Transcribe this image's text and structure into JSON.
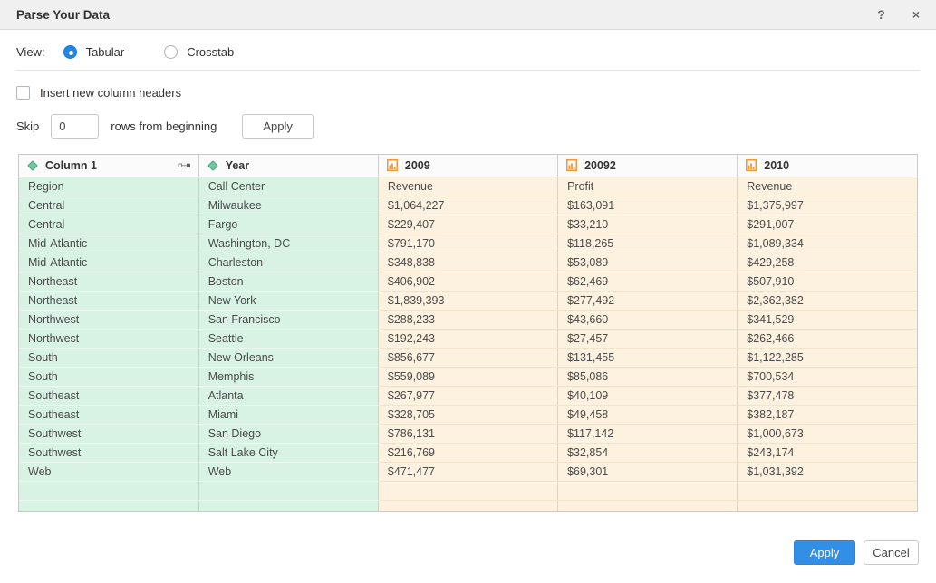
{
  "dialog": {
    "title": "Parse Your Data",
    "help_icon": "?",
    "close_icon": "×"
  },
  "view": {
    "label": "View:",
    "options": [
      {
        "label": "Tabular",
        "selected": true
      },
      {
        "label": "Crosstab",
        "selected": false
      }
    ]
  },
  "options": {
    "insert_headers_label": "Insert new column headers",
    "insert_headers_checked": false,
    "skip_label": "Skip",
    "skip_value": "0",
    "skip_suffix": "rows from beginning",
    "skip_apply_label": "Apply"
  },
  "table": {
    "columns": [
      {
        "label": "Column 1",
        "type": "text"
      },
      {
        "label": "Year",
        "type": "text"
      },
      {
        "label": "2009",
        "type": "number"
      },
      {
        "label": "20092",
        "type": "number"
      },
      {
        "label": "2010",
        "type": "number"
      }
    ],
    "rows": [
      [
        "Region",
        "Call Center",
        "Revenue",
        "Profit",
        "Revenue"
      ],
      [
        "Central",
        "Milwaukee",
        "$1,064,227",
        "$163,091",
        "$1,375,997"
      ],
      [
        "Central",
        "Fargo",
        "$229,407",
        "$33,210",
        "$291,007"
      ],
      [
        "Mid-Atlantic",
        "Washington, DC",
        "$791,170",
        "$118,265",
        "$1,089,334"
      ],
      [
        "Mid-Atlantic",
        "Charleston",
        "$348,838",
        "$53,089",
        "$429,258"
      ],
      [
        "Northeast",
        "Boston",
        "$406,902",
        "$62,469",
        "$507,910"
      ],
      [
        "Northeast",
        "New York",
        "$1,839,393",
        "$277,492",
        "$2,362,382"
      ],
      [
        "Northwest",
        "San Francisco",
        "$288,233",
        "$43,660",
        "$341,529"
      ],
      [
        "Northwest",
        "Seattle",
        "$192,243",
        "$27,457",
        "$262,466"
      ],
      [
        "South",
        "New Orleans",
        "$856,677",
        "$131,455",
        "$1,122,285"
      ],
      [
        "South",
        "Memphis",
        "$559,089",
        "$85,086",
        "$700,534"
      ],
      [
        "Southeast",
        "Atlanta",
        "$267,977",
        "$40,109",
        "$377,478"
      ],
      [
        "Southeast",
        "Miami",
        "$328,705",
        "$49,458",
        "$382,187"
      ],
      [
        "Southwest",
        "San Diego",
        "$786,131",
        "$117,142",
        "$1,000,673"
      ],
      [
        "Southwest",
        "Salt Lake City",
        "$216,769",
        "$32,854",
        "$243,174"
      ],
      [
        "Web",
        "Web",
        "$471,477",
        "$69,301",
        "$1,031,392"
      ],
      [
        "",
        "",
        "",
        "",
        ""
      ],
      [
        "",
        "",
        "",
        "",
        ""
      ]
    ]
  },
  "footer": {
    "apply_label": "Apply",
    "cancel_label": "Cancel"
  },
  "colors": {
    "accent_blue": "#338fe5",
    "text_column_bg": "#d8f3e4",
    "number_column_bg": "#fdf1e0",
    "text_column_icon": "#6ec7a0",
    "number_column_icon": "#f0973a"
  }
}
